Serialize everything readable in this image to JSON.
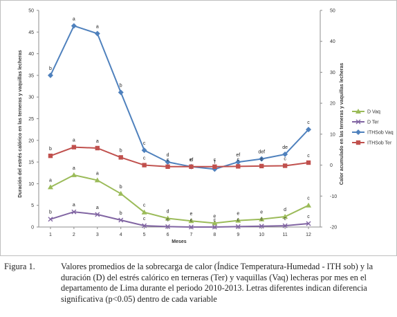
{
  "chart_data": {
    "type": "line",
    "ylabel_left": "Duración del estrés calórico en las terneras y vaquillas lecheras",
    "ylabel_right": "Calor acumulado en las terneras y vaquillas lecheras",
    "xlabel": "Meses",
    "ylim_left": [
      0,
      50
    ],
    "yticks_left": [
      0,
      5,
      10,
      15,
      20,
      25,
      30,
      35,
      40,
      45,
      50
    ],
    "ylim_right": [
      -20,
      50
    ],
    "yticks_right": [
      -20,
      -10,
      0,
      10,
      20,
      30,
      40,
      50
    ],
    "x": [
      1,
      2,
      3,
      4,
      5,
      6,
      7,
      8,
      9,
      10,
      11,
      12
    ],
    "grid": false,
    "legend_position": "right",
    "series": [
      {
        "name": "D Vaq",
        "axis": "left",
        "color": "#9bbb59",
        "marker": "triangle",
        "values": [
          9.2,
          12.0,
          10.8,
          7.7,
          3.4,
          2.0,
          1.4,
          0.9,
          1.5,
          1.8,
          2.4,
          5.0
        ],
        "labels": [
          "a",
          "a",
          "a",
          "b",
          "c",
          "d",
          "e",
          "e",
          "e",
          "e",
          "d",
          "c"
        ]
      },
      {
        "name": "D Ter",
        "axis": "left",
        "color": "#8064a2",
        "marker": "x",
        "values": [
          1.8,
          3.5,
          2.9,
          1.6,
          0.3,
          0.1,
          0.0,
          0.0,
          0.1,
          0.2,
          0.3,
          0.8
        ],
        "labels": [
          "b",
          "a",
          "a",
          "b",
          "c",
          "c",
          "c",
          "c",
          "c",
          "c",
          "c",
          "c"
        ]
      },
      {
        "name": "ITHSob Vaq",
        "axis": "right",
        "color": "#4f81bd",
        "marker": "diamond",
        "values": [
          29.0,
          45.0,
          42.5,
          23.5,
          4.8,
          1.0,
          -0.5,
          -1.3,
          1.0,
          2.0,
          3.5,
          11.5
        ],
        "labels": [
          "b",
          "a",
          "a",
          "b",
          "c",
          "d",
          "ef",
          "f",
          "ef",
          "def",
          "de",
          "c"
        ]
      },
      {
        "name": "ITHSob Ter",
        "axis": "right",
        "color": "#c0504d",
        "marker": "square",
        "values": [
          3.0,
          5.8,
          5.5,
          2.5,
          0.0,
          -0.5,
          -0.5,
          -0.5,
          -0.4,
          -0.3,
          -0.2,
          0.8
        ],
        "labels": [
          "b",
          "a",
          "a",
          "b",
          "c",
          "c",
          "c",
          "c",
          "c",
          "c",
          "c",
          "c"
        ]
      }
    ]
  },
  "caption": {
    "label": "Figura 1.",
    "text": "Valores promedios de la sobrecarga de calor (Índice Temperatura-Humedad - ITH sob) y la duración (D) del estrés calórico en terneras (Ter) y vaquillas (Vaq) lecheras por mes en el departamento de Lima durante el periodo 2010-2013. Letras diferentes indican diferencia significativa (p<0.05) dentro de cada variable"
  }
}
